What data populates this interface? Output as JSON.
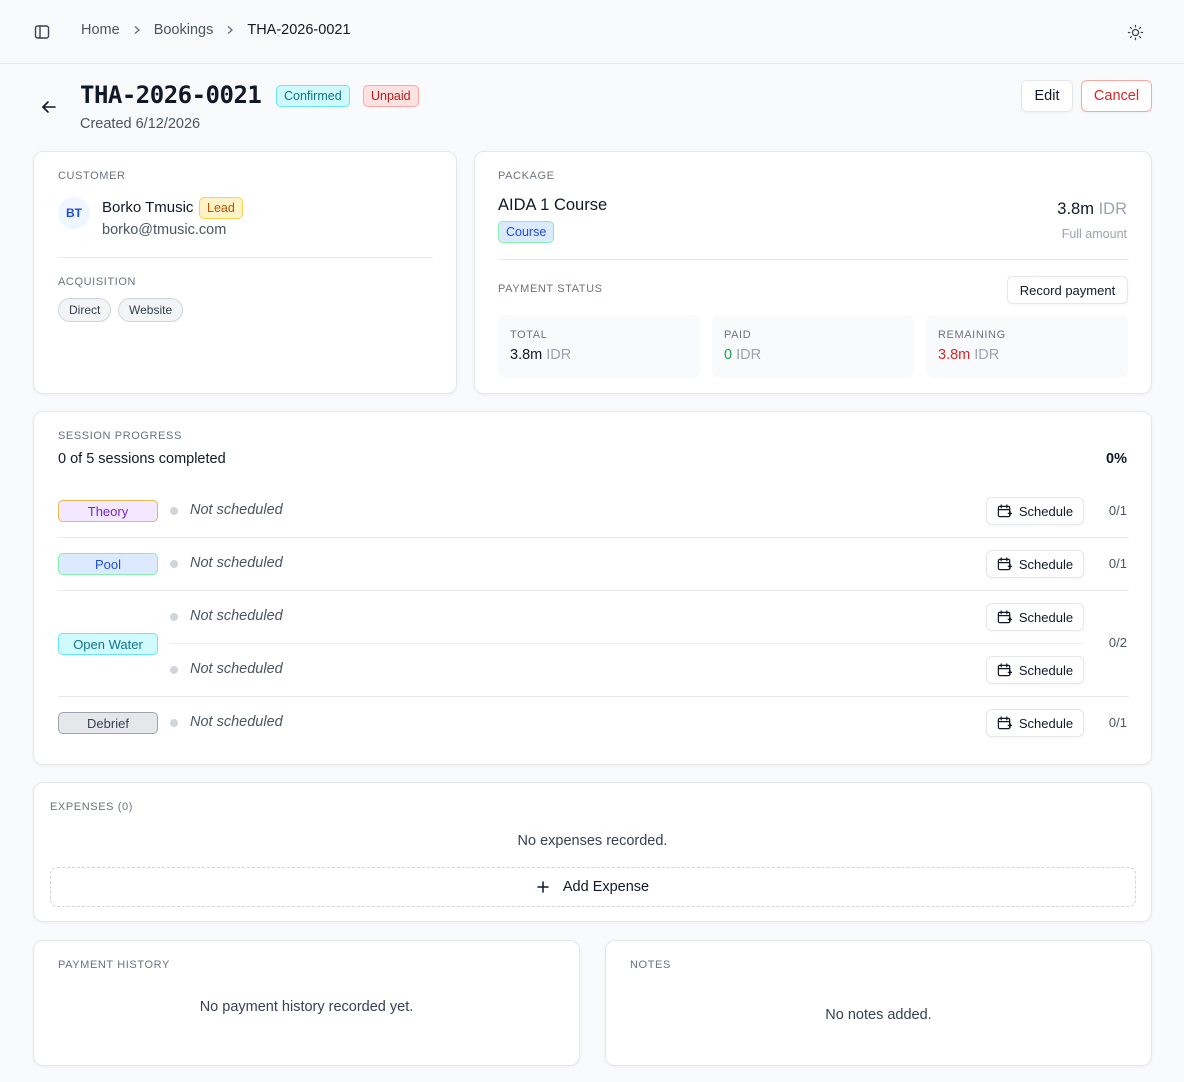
{
  "breadcrumb": {
    "home": "Home",
    "bookings": "Bookings",
    "current": "THA-2026-0021"
  },
  "header": {
    "title": "THA-2026-0021",
    "status_badge": "Confirmed",
    "payment_badge": "Unpaid",
    "created": "Created 6/12/2026",
    "edit_label": "Edit",
    "cancel_label": "Cancel"
  },
  "customer": {
    "section_label": "CUSTOMER",
    "initials": "BT",
    "name": "Borko Tmusic",
    "badge": "Lead",
    "email": "borko@tmusic.com",
    "acquisition_label": "ACQUISITION",
    "acquisition_tags": [
      "Direct",
      "Website"
    ]
  },
  "package": {
    "section_label": "PACKAGE",
    "name": "AIDA 1 Course",
    "type_badge": "Course",
    "amount": "3.8m",
    "currency": "IDR",
    "amount_note": "Full amount",
    "payment_status_label": "PAYMENT STATUS",
    "record_payment_label": "Record payment",
    "stats": {
      "total_label": "TOTAL",
      "total_value": "3.8m",
      "total_currency": "IDR",
      "paid_label": "PAID",
      "paid_value": "0",
      "paid_currency": "IDR",
      "remaining_label": "REMAINING",
      "remaining_value": "3.8m",
      "remaining_currency": "IDR"
    }
  },
  "sessions": {
    "section_label": "SESSION PROGRESS",
    "summary": "0 of 5 sessions completed",
    "percent": "0%",
    "not_scheduled": "Not scheduled",
    "schedule_label": "Schedule",
    "groups": [
      {
        "name": "Theory",
        "count": "0/1"
      },
      {
        "name": "Pool",
        "count": "0/1"
      },
      {
        "name": "Open Water",
        "count": "0/2"
      },
      {
        "name": "Debrief",
        "count": "0/1"
      }
    ]
  },
  "expenses": {
    "section_label": "EXPENSES (0)",
    "empty": "No expenses recorded.",
    "add_label": "Add Expense"
  },
  "payment_history": {
    "section_label": "PAYMENT HISTORY",
    "empty": "No payment history recorded yet."
  },
  "notes": {
    "section_label": "NOTES",
    "empty": "No notes added."
  },
  "colors": {
    "accent_confirmed": "#0e7490",
    "danger": "#dc2626",
    "success": "#16a34a"
  },
  "icons": [
    "sidebar-toggle-icon",
    "chevron-right-icon",
    "sun-icon",
    "arrow-left-icon",
    "calendar-plus-icon",
    "plus-icon"
  ]
}
